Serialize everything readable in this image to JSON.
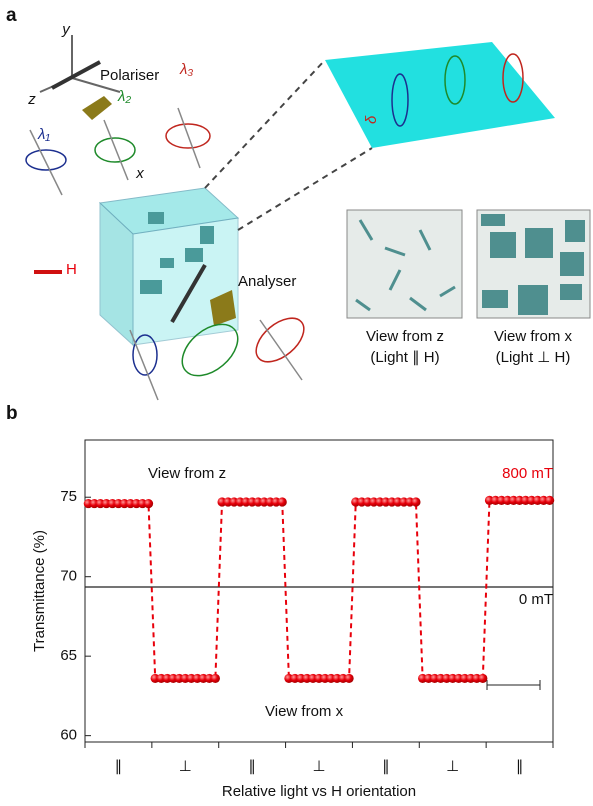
{
  "panel_labels": [
    "a",
    "b"
  ],
  "illustration": {
    "axes": {
      "x": "x",
      "y": "y",
      "z": "z"
    },
    "polariser": "Polariser",
    "analyser": "Analyser",
    "field": "H",
    "wavelengths": [
      "λ₁",
      "λ₂",
      "λ₃"
    ],
    "delta": "δ",
    "views": [
      {
        "title": "View from z",
        "condition": "(Light ∥ H)"
      },
      {
        "title": "View from x",
        "condition": "(Light ⊥ H)"
      }
    ]
  },
  "chart_data": {
    "type": "line",
    "ylabel": "Transmittance (%)",
    "xlabel": "Relative light vs H orientation",
    "categories": [
      "∥",
      "⊥",
      "∥",
      "⊥",
      "∥",
      "⊥",
      "∥"
    ],
    "xlim": [
      0,
      7
    ],
    "ylim": [
      59.6,
      78.6
    ],
    "yticks": [
      60,
      65,
      70,
      75
    ],
    "reference_line": 69.35,
    "annotations": [
      "View from z",
      "800 mT",
      "0 mT",
      "View from x"
    ],
    "series": [
      {
        "name": "800 mT",
        "color": "#e8000b",
        "x": [
          0.05,
          0.14,
          0.23,
          0.32,
          0.41,
          0.5,
          0.59,
          0.68,
          0.77,
          0.86,
          0.95,
          1.05,
          1.14,
          1.23,
          1.32,
          1.41,
          1.5,
          1.59,
          1.68,
          1.77,
          1.86,
          1.95,
          2.05,
          2.14,
          2.23,
          2.32,
          2.41,
          2.5,
          2.59,
          2.68,
          2.77,
          2.86,
          2.95,
          3.05,
          3.14,
          3.23,
          3.32,
          3.41,
          3.5,
          3.59,
          3.68,
          3.77,
          3.86,
          3.95,
          4.05,
          4.14,
          4.23,
          4.32,
          4.41,
          4.5,
          4.59,
          4.68,
          4.77,
          4.86,
          4.95,
          5.05,
          5.14,
          5.23,
          5.32,
          5.41,
          5.5,
          5.59,
          5.68,
          5.77,
          5.86,
          5.95,
          6.05,
          6.14,
          6.23,
          6.32,
          6.41,
          6.5,
          6.59,
          6.68,
          6.77,
          6.86,
          6.95
        ],
        "values": [
          74.6,
          74.6,
          74.6,
          74.6,
          74.6,
          74.6,
          74.6,
          74.6,
          74.6,
          74.6,
          74.6,
          63.6,
          63.6,
          63.6,
          63.6,
          63.6,
          63.6,
          63.6,
          63.6,
          63.6,
          63.6,
          63.6,
          74.7,
          74.7,
          74.7,
          74.7,
          74.7,
          74.7,
          74.7,
          74.7,
          74.7,
          74.7,
          74.7,
          63.6,
          63.6,
          63.6,
          63.6,
          63.6,
          63.6,
          63.6,
          63.6,
          63.6,
          63.6,
          63.6,
          74.7,
          74.7,
          74.7,
          74.7,
          74.7,
          74.7,
          74.7,
          74.7,
          74.7,
          74.7,
          74.7,
          63.6,
          63.6,
          63.6,
          63.6,
          63.6,
          63.6,
          63.6,
          63.6,
          63.6,
          63.6,
          63.6,
          74.8,
          74.8,
          74.8,
          74.8,
          74.8,
          74.8,
          74.8,
          74.8,
          74.8,
          74.8,
          74.8
        ]
      }
    ]
  }
}
